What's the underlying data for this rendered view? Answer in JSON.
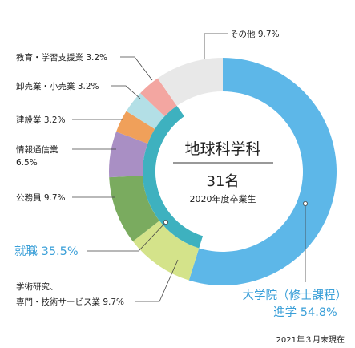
{
  "chart_data": {
    "type": "pie",
    "style": "donut",
    "center": {
      "title": "地球科学科",
      "count": "31名",
      "year": "2020年度卒業生"
    },
    "outer_ring": [
      {
        "name": "大学院（修士課程）進学",
        "value": 54.8,
        "color": "#5db7e8"
      },
      {
        "name": "学術研究、専門・技術サービス業",
        "value": 9.7,
        "color": "#d4e38a"
      },
      {
        "name": "公務員",
        "value": 9.7,
        "color": "#7aab5f"
      },
      {
        "name": "情報通信業",
        "value": 6.5,
        "color": "#a98fc4"
      },
      {
        "name": "建設業",
        "value": 3.2,
        "color": "#f0a05a"
      },
      {
        "name": "卸売業・小売業",
        "value": 3.2,
        "color": "#b3dfe6"
      },
      {
        "name": "教育・学習支援業",
        "value": 3.2,
        "color": "#f3a6a1"
      },
      {
        "name": "その他",
        "value": 9.7,
        "color": "#e8e8e8"
      }
    ],
    "inner_ring": [
      {
        "name": "就職",
        "value": 35.5,
        "color": "#3eb1bf"
      }
    ],
    "labels": {
      "sonota": "その他 9.7%",
      "kyoiku": "教育・学習支援業 3.2%",
      "oroshi": "卸売業・小売業 3.2%",
      "kensetsu": "建設業 3.2%",
      "joho_1": "情報通信業",
      "joho_2": "6.5%",
      "komuin": "公務員 9.7%",
      "shushoku": "就職 35.5%",
      "gakujutsu_1": "学術研究、",
      "gakujutsu_2": "専門・技術サービス業 9.7%",
      "daigakuin_1": "大学院（修士課程）",
      "daigakuin_2": "進学 54.8%"
    },
    "footnote": "2021年３月末現在"
  }
}
